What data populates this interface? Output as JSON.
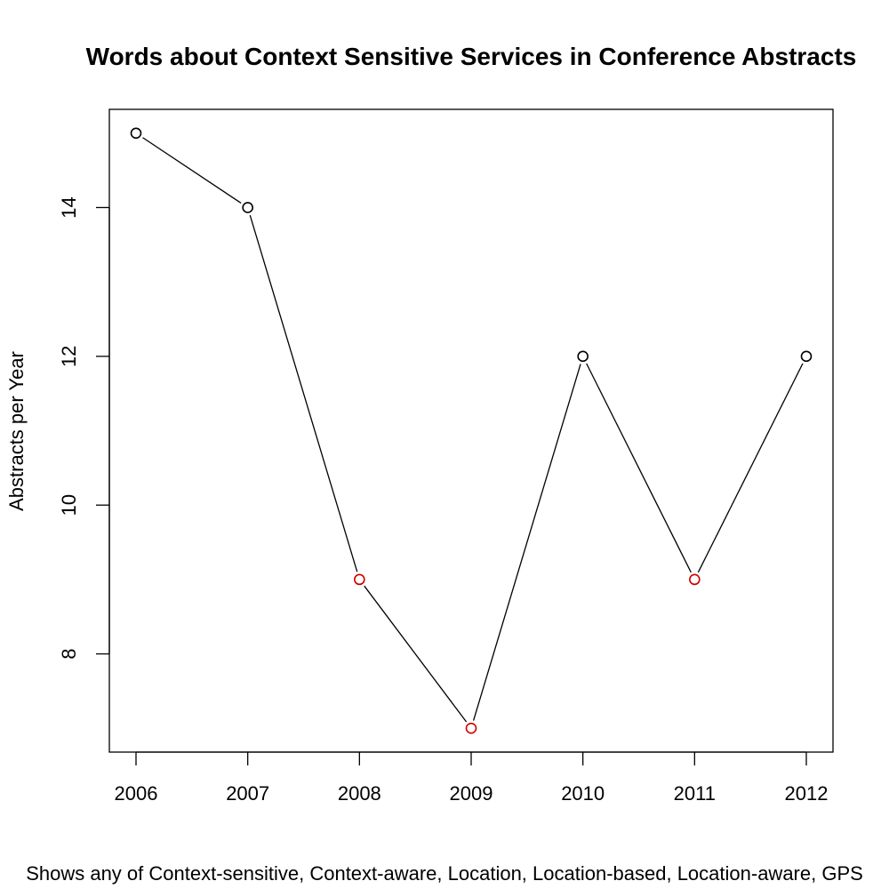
{
  "chart_data": {
    "type": "line",
    "title": "Words about Context Sensitive Services in Conference Abstracts",
    "xlabel": "",
    "ylabel": "Abstracts per Year",
    "caption": "Shows any of Context-sensitive, Context-aware, Location, Location-based, Location-aware, GPS",
    "x": [
      2006,
      2007,
      2008,
      2009,
      2010,
      2011,
      2012
    ],
    "values": [
      15,
      14,
      9,
      7,
      12,
      9,
      12
    ],
    "point_colors": [
      "#000000",
      "#000000",
      "#cc0000",
      "#cc0000",
      "#000000",
      "#cc0000",
      "#000000"
    ],
    "x_ticks": [
      "2006",
      "2007",
      "2008",
      "2009",
      "2010",
      "2011",
      "2012"
    ],
    "y_ticks": [
      "8",
      "10",
      "12",
      "14"
    ],
    "ylim": [
      6.68,
      15.32
    ],
    "grid": false,
    "line_color": "#000000"
  }
}
